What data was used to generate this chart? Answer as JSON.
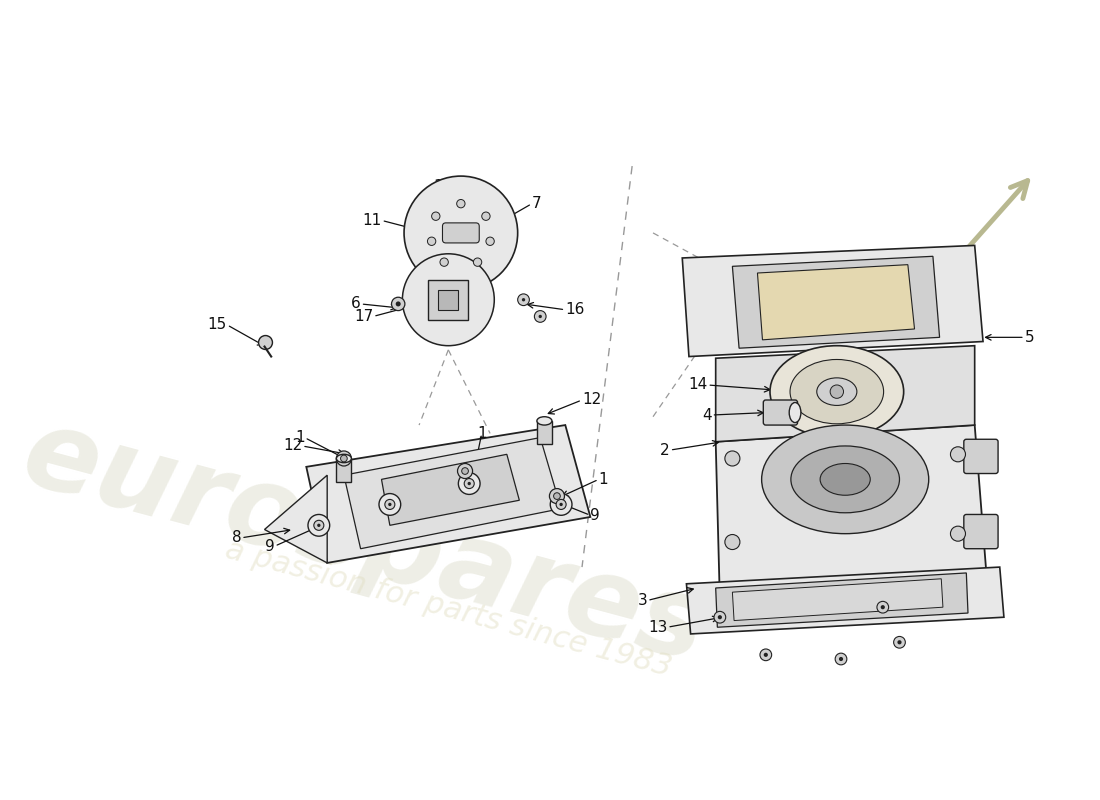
{
  "background_color": "#ffffff",
  "line_color": "#222222",
  "fill_light": "#e8e8e8",
  "fill_mid": "#d0d0d0",
  "fill_dark": "#b8b8b8",
  "fill_gasket": "#e8e4d8",
  "watermark_color1": "#d0d0b8",
  "watermark_color2": "#e0ddc0",
  "arrow_color": "#b8b890",
  "label_color": "#111111",
  "dashed_color": "#999999"
}
